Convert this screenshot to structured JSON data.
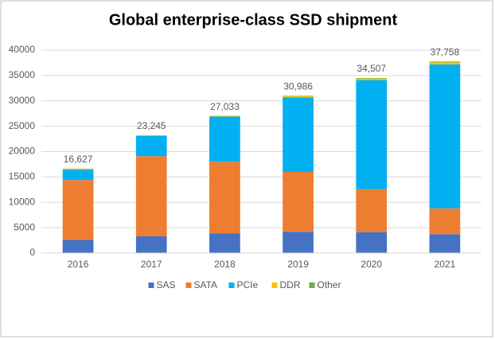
{
  "chart_data": {
    "type": "stacked_bar",
    "title": "Global enterprise-class SSD shipment",
    "categories": [
      "2016",
      "2017",
      "2018",
      "2019",
      "2020",
      "2021"
    ],
    "series": [
      {
        "name": "SAS",
        "color": "#4472c4",
        "values": [
          2600,
          3300,
          3900,
          4200,
          4100,
          3700
        ]
      },
      {
        "name": "SATA",
        "color": "#ed7d31",
        "values": [
          11800,
          15800,
          14100,
          11800,
          8500,
          5100
        ]
      },
      {
        "name": "PCIe",
        "color": "#00b0f0",
        "values": [
          2000,
          4000,
          8900,
          14700,
          21500,
          28400
        ]
      },
      {
        "name": "DDR",
        "color": "#ffc000",
        "values": [
          150,
          100,
          80,
          200,
          300,
          400
        ]
      },
      {
        "name": "Other",
        "color": "#70ad47",
        "values": [
          77,
          45,
          53,
          86,
          107,
          158
        ]
      }
    ],
    "totals": [
      16627,
      23245,
      27033,
      30986,
      34507,
      37758
    ],
    "total_labels": [
      "16,627",
      "23,245",
      "27,033",
      "30,986",
      "34,507",
      "37,758"
    ],
    "ylim": [
      0,
      40000
    ],
    "yticks": [
      0,
      5000,
      10000,
      15000,
      20000,
      25000,
      30000,
      35000,
      40000
    ],
    "grid": true,
    "legend": "bottom"
  }
}
